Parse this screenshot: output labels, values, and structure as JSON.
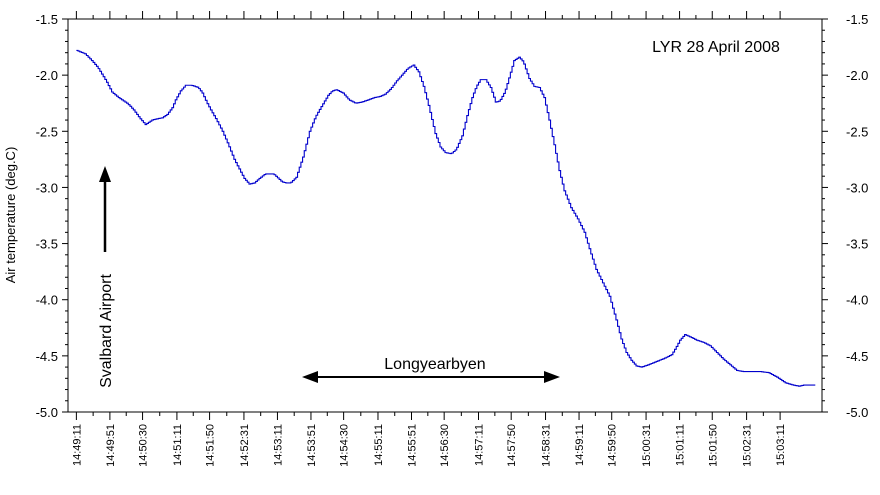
{
  "chart_data": {
    "type": "line",
    "title": "LYR 28 April 2008",
    "ylabel": "Air temperature (deg.C)",
    "xlabel": "",
    "ylim": [
      -5.0,
      -1.5
    ],
    "yticks": [
      "-1.5",
      "-2.0",
      "-2.5",
      "-3.0",
      "-3.5",
      "-4.0",
      "-4.5",
      "-5.0"
    ],
    "ytick_values": [
      -1.5,
      -2.0,
      -2.5,
      -3.0,
      -3.5,
      -4.0,
      -4.5,
      -5.0
    ],
    "xticks": [
      "14:49:11",
      "14:49:51",
      "14:50:30",
      "14:51:11",
      "14:51:50",
      "14:52:31",
      "14:53:11",
      "14:53:51",
      "14:54:30",
      "14:55:11",
      "14:55:51",
      "14:56:30",
      "14:57:11",
      "14:57:50",
      "14:58:31",
      "14:59:11",
      "14:59:50",
      "15:00:31",
      "15:01:11",
      "15:01:50",
      "15:02:31",
      "15:03:11"
    ],
    "xtick_seconds": [
      0,
      40,
      79,
      120,
      159,
      200,
      240,
      280,
      319,
      360,
      400,
      439,
      480,
      519,
      560,
      600,
      639,
      680,
      720,
      759,
      800,
      840
    ],
    "xlim_seconds": [
      -10,
      890
    ],
    "grid": false,
    "line_color": "#0000cc",
    "annotations": {
      "svalbard": "Svalbard Airport",
      "longyearbyen": "Longyearbyen"
    },
    "series": [
      {
        "x": [
          0,
          10,
          18,
          25,
          35,
          42,
          50,
          60,
          63,
          68,
          75,
          82,
          90,
          95,
          102,
          108,
          114,
          118,
          124,
          130,
          137,
          145,
          150,
          155,
          160,
          167,
          174,
          181,
          188,
          195,
          200,
          206,
          212,
          218,
          225,
          235,
          245,
          250,
          255,
          262,
          270,
          278,
          285,
          292,
          300,
          305,
          310,
          318,
          325,
          333,
          340,
          348,
          355,
          362,
          368,
          375,
          382,
          388,
          395,
          402,
          408,
          414,
          420,
          428,
          434,
          440,
          447,
          453,
          460,
          466,
          472,
          477,
          482,
          488,
          494,
          500,
          505,
          511,
          517,
          522,
          528,
          533,
          540,
          546,
          552,
          558,
          564,
          570,
          576,
          582,
          590,
          598,
          606,
          613,
          620,
          628,
          636,
          644,
          650,
          656,
          662,
          668,
          674,
          682,
          692,
          702,
          710,
          715,
          720,
          726,
          732,
          740,
          748,
          756,
          764,
          772,
          780,
          788,
          796,
          806,
          816,
          826,
          836,
          846,
          855,
          862,
          868,
          876,
          882
        ],
        "y": [
          -1.78,
          -1.81,
          -1.87,
          -1.93,
          -2.05,
          -2.15,
          -2.2,
          -2.25,
          -2.27,
          -2.31,
          -2.38,
          -2.44,
          -2.4,
          -2.39,
          -2.38,
          -2.35,
          -2.29,
          -2.22,
          -2.14,
          -2.09,
          -2.09,
          -2.11,
          -2.16,
          -2.24,
          -2.31,
          -2.4,
          -2.5,
          -2.62,
          -2.75,
          -2.85,
          -2.92,
          -2.97,
          -2.96,
          -2.92,
          -2.88,
          -2.88,
          -2.95,
          -2.96,
          -2.96,
          -2.91,
          -2.73,
          -2.5,
          -2.37,
          -2.28,
          -2.18,
          -2.14,
          -2.13,
          -2.16,
          -2.22,
          -2.25,
          -2.24,
          -2.22,
          -2.2,
          -2.19,
          -2.17,
          -2.12,
          -2.05,
          -2.0,
          -1.94,
          -1.91,
          -1.97,
          -2.1,
          -2.27,
          -2.52,
          -2.64,
          -2.69,
          -2.7,
          -2.66,
          -2.54,
          -2.36,
          -2.2,
          -2.1,
          -2.04,
          -2.04,
          -2.11,
          -2.24,
          -2.23,
          -2.15,
          -2.0,
          -1.87,
          -1.84,
          -1.88,
          -2.03,
          -2.1,
          -2.11,
          -2.2,
          -2.4,
          -2.62,
          -2.85,
          -3.03,
          -3.18,
          -3.28,
          -3.4,
          -3.57,
          -3.73,
          -3.85,
          -3.97,
          -4.18,
          -4.35,
          -4.47,
          -4.54,
          -4.59,
          -4.6,
          -4.58,
          -4.55,
          -4.52,
          -4.49,
          -4.43,
          -4.36,
          -4.31,
          -4.33,
          -4.36,
          -4.38,
          -4.41,
          -4.47,
          -4.53,
          -4.58,
          -4.63,
          -4.64,
          -4.64,
          -4.64,
          -4.65,
          -4.69,
          -4.74,
          -4.76,
          -4.77,
          -4.76,
          -4.76,
          -4.76
        ]
      }
    ]
  }
}
